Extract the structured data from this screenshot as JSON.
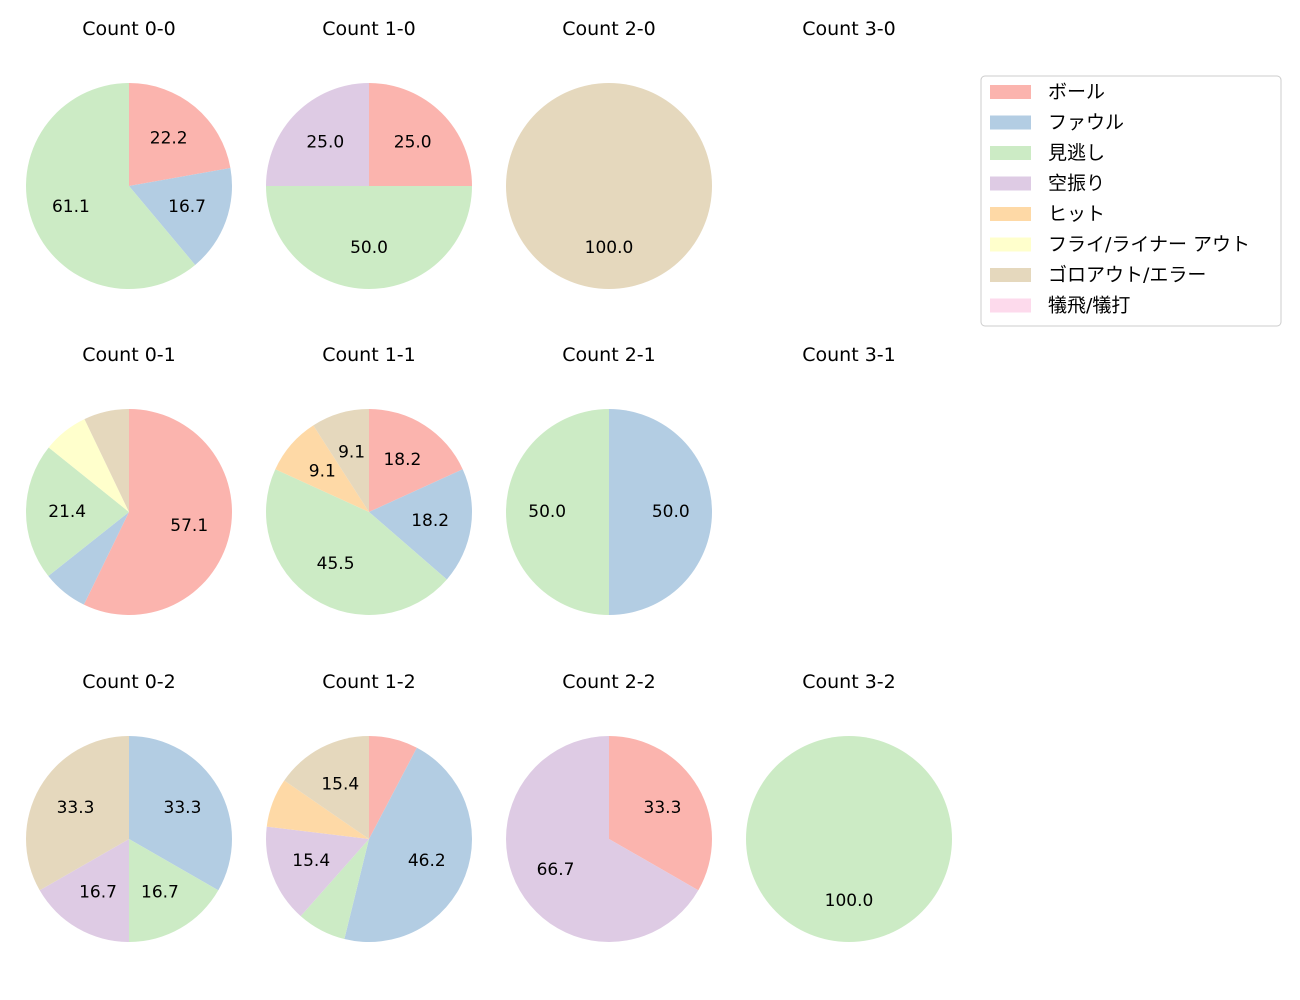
{
  "chart_data": {
    "type": "pie",
    "legend": {
      "position": "top-right",
      "entries": [
        {
          "name": "ボール",
          "color": "#fbb4ae"
        },
        {
          "name": "ファウル",
          "color": "#b3cde3"
        },
        {
          "name": "見逃し",
          "color": "#ccebc5"
        },
        {
          "name": "空振り",
          "color": "#decbe4"
        },
        {
          "name": "ヒット",
          "color": "#fed9a6"
        },
        {
          "name": "フライ/ライナー アウト",
          "color": "#ffffcc"
        },
        {
          "name": "ゴロアウト/エラー",
          "color": "#e5d8bd"
        },
        {
          "name": "犠飛/犠打",
          "color": "#fddaec"
        }
      ]
    },
    "panels": [
      {
        "title": "Count 0-0",
        "values": [
          22.2,
          16.7,
          61.1,
          0,
          0,
          0,
          0,
          0
        ],
        "labels": [
          "22.2",
          "16.7",
          "61.1",
          "",
          "",
          "",
          "",
          ""
        ]
      },
      {
        "title": "Count 1-0",
        "values": [
          25.0,
          0,
          50.0,
          25.0,
          0,
          0,
          0,
          0
        ],
        "labels": [
          "25.0",
          "",
          "50.0",
          "25.0",
          "",
          "",
          "",
          ""
        ]
      },
      {
        "title": "Count 2-0",
        "values": [
          0,
          0,
          0,
          0,
          0,
          0,
          100.0,
          0
        ],
        "labels": [
          "",
          "",
          "",
          "",
          "",
          "",
          "100.0",
          ""
        ]
      },
      {
        "title": "Count 3-0",
        "values": [],
        "labels": []
      },
      {
        "title": "Count 0-1",
        "values": [
          57.1,
          7.1,
          21.4,
          0,
          0,
          7.1,
          7.1,
          0
        ],
        "labels": [
          "57.1",
          "",
          "21.4",
          "",
          "",
          "",
          "",
          ""
        ]
      },
      {
        "title": "Count 1-1",
        "values": [
          18.2,
          18.2,
          45.5,
          0,
          9.1,
          0,
          9.1,
          0
        ],
        "labels": [
          "18.2",
          "18.2",
          "45.5",
          "",
          "9.1",
          "",
          "9.1",
          ""
        ]
      },
      {
        "title": "Count 2-1",
        "values": [
          0,
          50.0,
          50.0,
          0,
          0,
          0,
          0,
          0
        ],
        "labels": [
          "",
          "50.0",
          "50.0",
          "",
          "",
          "",
          "",
          ""
        ]
      },
      {
        "title": "Count 3-1",
        "values": [],
        "labels": []
      },
      {
        "title": "Count 0-2",
        "values": [
          0,
          33.3,
          16.7,
          16.7,
          0,
          0,
          33.3,
          0
        ],
        "labels": [
          "",
          "33.3",
          "16.7",
          "16.7",
          "",
          "",
          "33.3",
          ""
        ]
      },
      {
        "title": "Count 1-2",
        "values": [
          7.7,
          46.2,
          7.7,
          15.4,
          7.7,
          0,
          15.4,
          0
        ],
        "labels": [
          "",
          "46.2",
          "",
          "15.4",
          "",
          "",
          "15.4",
          ""
        ]
      },
      {
        "title": "Count 2-2",
        "values": [
          33.3,
          0,
          0,
          66.7,
          0,
          0,
          0,
          0
        ],
        "labels": [
          "33.3",
          "",
          "",
          "66.7",
          "",
          "",
          "",
          ""
        ]
      },
      {
        "title": "Count 3-2",
        "values": [
          0,
          0,
          100.0,
          0,
          0,
          0,
          0,
          0
        ],
        "labels": [
          "",
          "",
          "100.0",
          "",
          "",
          "",
          "",
          ""
        ]
      }
    ]
  }
}
